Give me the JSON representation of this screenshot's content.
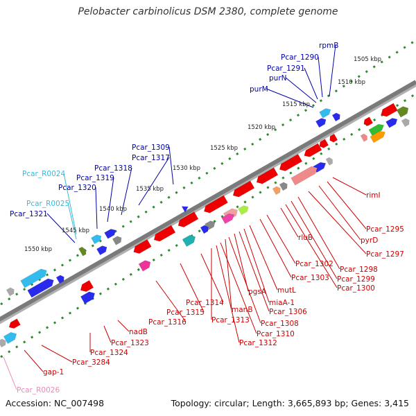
{
  "title": "Pelobacter carbinolicus DSM 2380, complete genome",
  "footer": {
    "accession": "Accession: NC_007498",
    "summary": "Topology: circular; Length: 3,665,893 bp; Genes: 3,415"
  },
  "colors": {
    "backbone": "#808080",
    "ruler": "#2e8b2e",
    "blue_label": "#0000aa",
    "cyan_label": "#33bbdd",
    "red_label": "#cc0000",
    "pink_label": "#ee88bb"
  },
  "ticks": [
    "1505 kbp",
    "1510 kbp",
    "1515 kbp",
    "1520 kbp",
    "1525 kbp",
    "1530 kbp",
    "1535 kbp",
    "1540 kbp",
    "1545 kbp",
    "1550 kbp"
  ],
  "labels_upper": [
    "rpmB",
    "Pcar_1290",
    "Pcar_1291",
    "purN",
    "purM",
    "Pcar_1309",
    "Pcar_1317",
    "Pcar_1318",
    "Pcar_1319",
    "Pcar_1320",
    "Pcar_R0024",
    "Pcar_R0025",
    "Pcar_1321"
  ],
  "labels_lower": [
    "rimI",
    "Pcar_1295",
    "pyrD",
    "Pcar_1297",
    "Pcar_1298",
    "Pcar_1299",
    "Pcar_1300",
    "rluB",
    "Pcar_1302",
    "Pcar_1303",
    "mutL",
    "miaA-1",
    "Pcar_1306",
    "pgsA",
    "Pcar_1308",
    "manB",
    "Pcar_1310",
    "Pcar_1312",
    "Pcar_1313",
    "Pcar_1314",
    "Pcar_1315",
    "Pcar_1316",
    "nadB",
    "Pcar_1323",
    "Pcar_1324",
    "Pcar_3284",
    "gap-1",
    "Pcar_R0026"
  ]
}
